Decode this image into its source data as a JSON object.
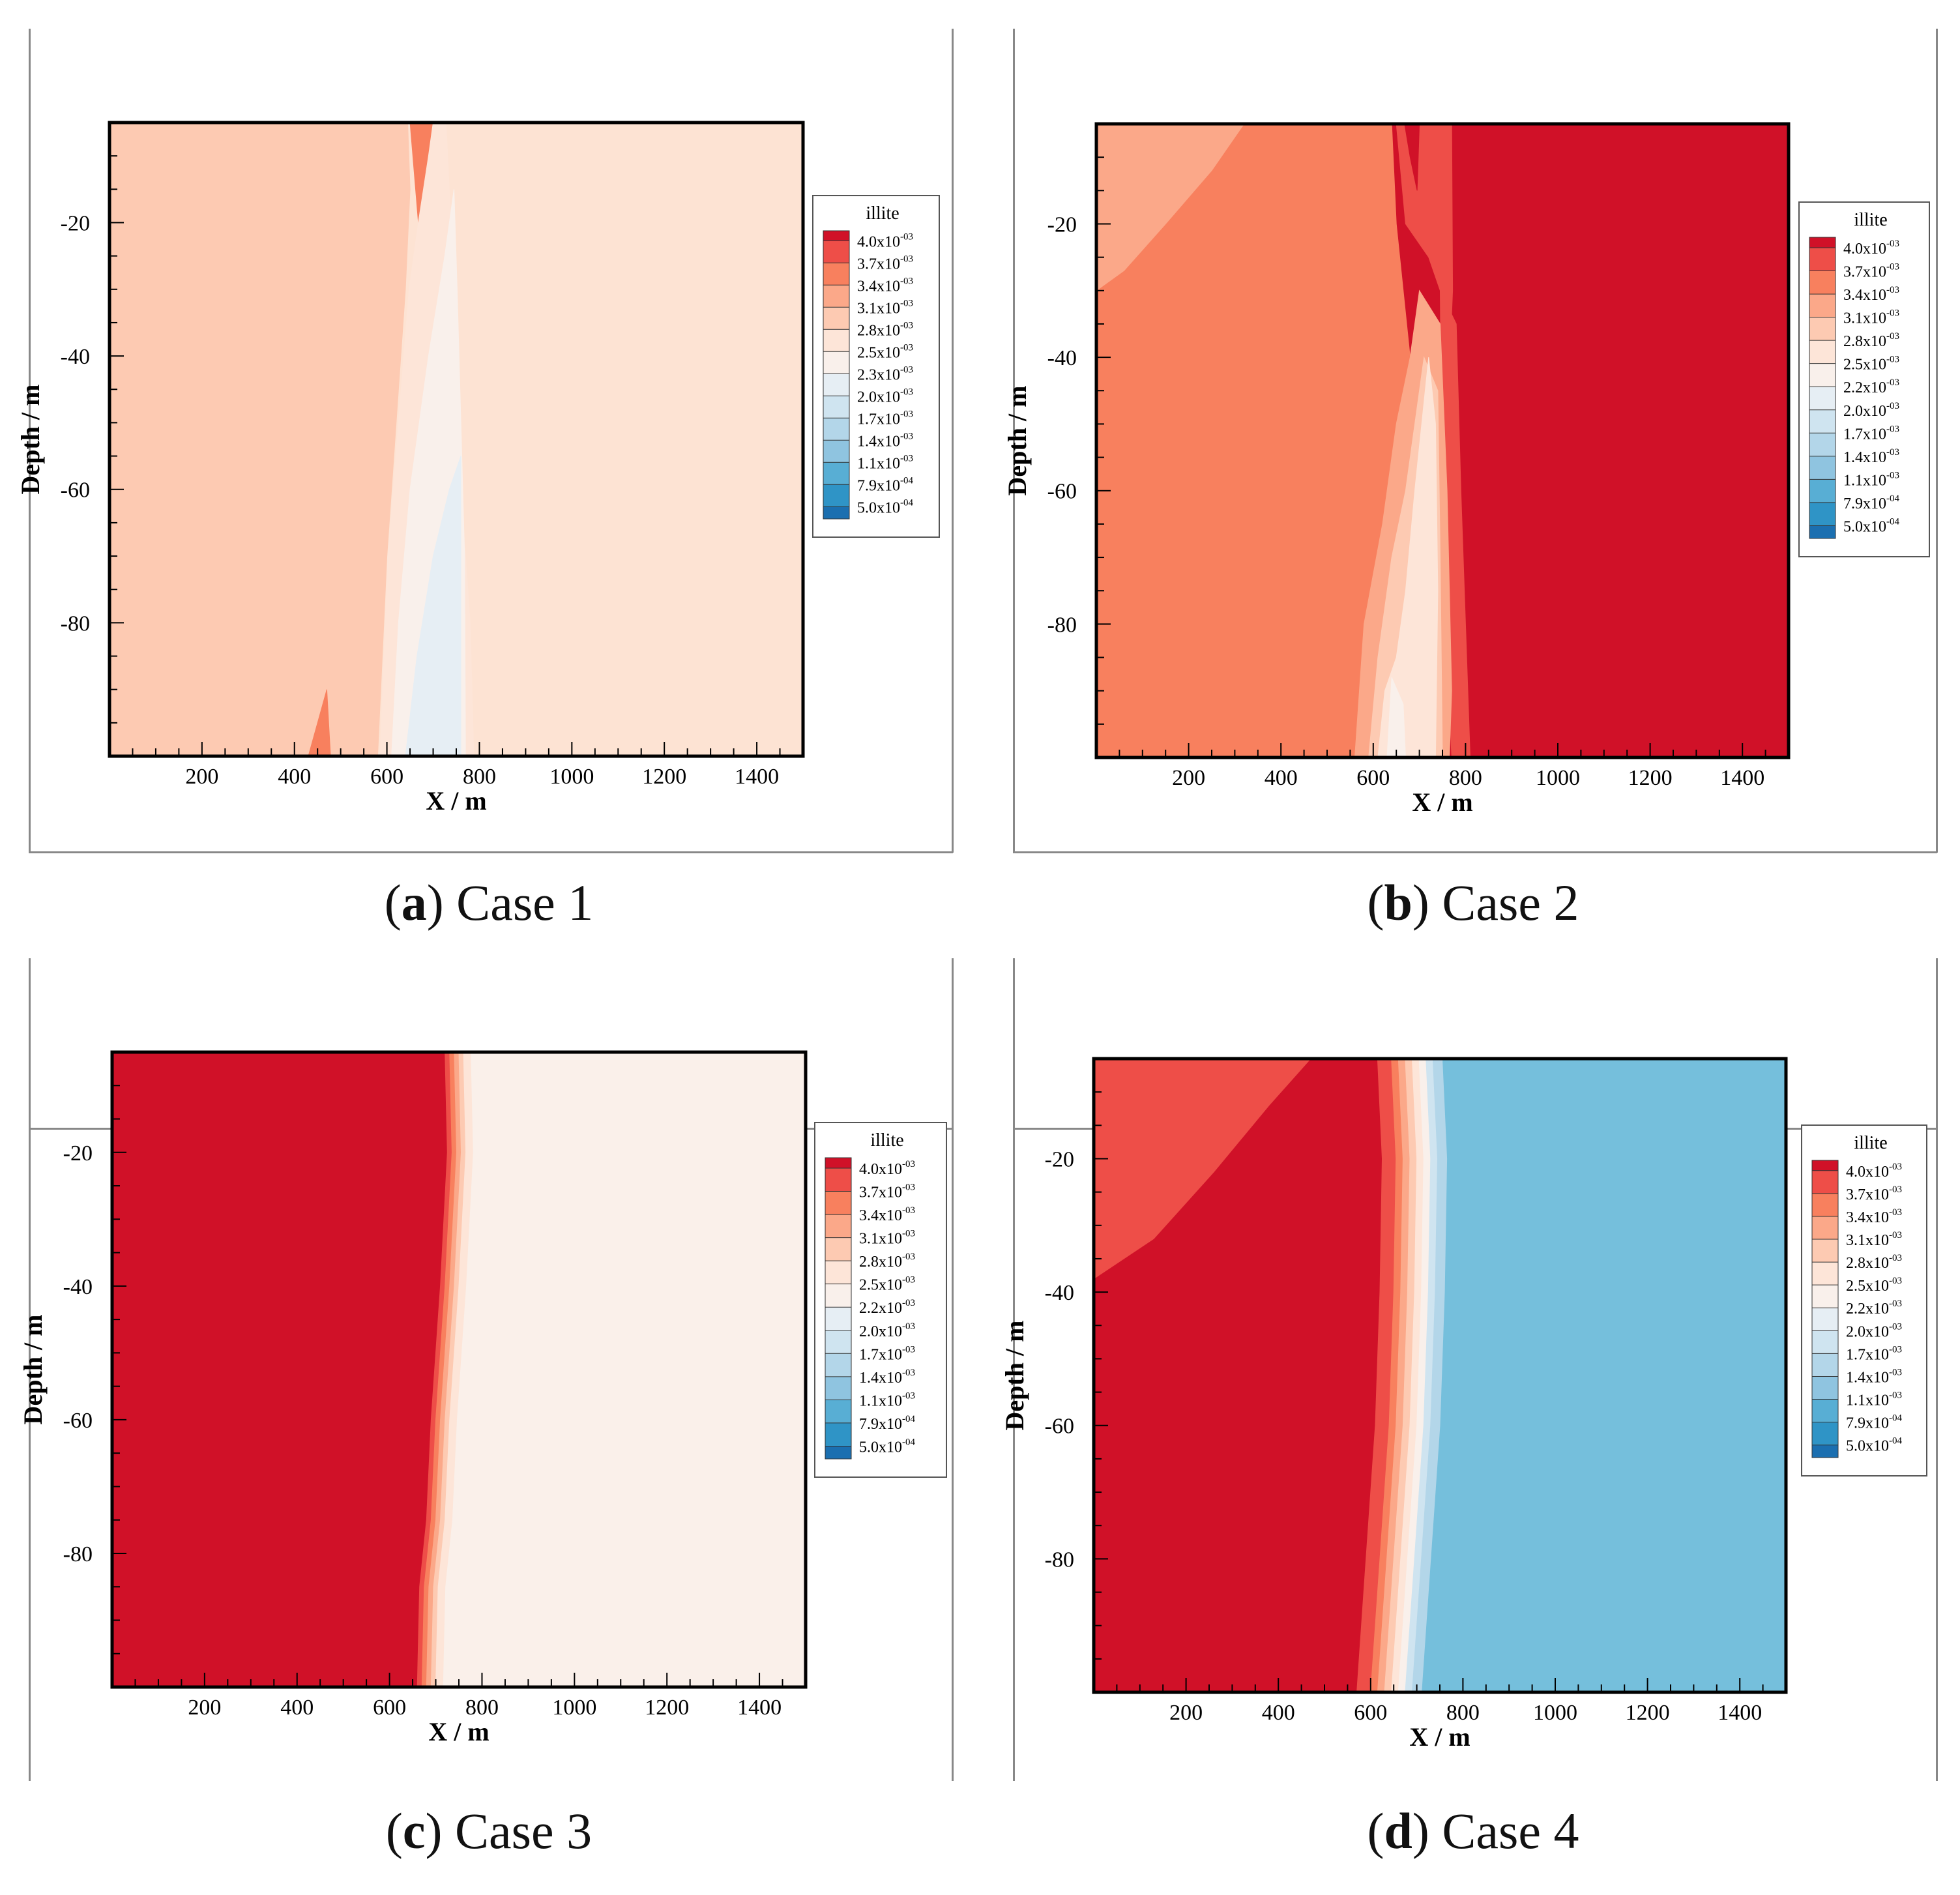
{
  "figure": {
    "panels": [
      {
        "letter": "a",
        "label": "Case 1"
      },
      {
        "letter": "b",
        "label": "Case 2"
      },
      {
        "letter": "c",
        "label": "Case 3"
      },
      {
        "letter": "d",
        "label": "Case 4"
      }
    ]
  },
  "colors": {
    "levels": [
      "#d01128",
      "#ee4e48",
      "#f8805e",
      "#fba889",
      "#fdcab2",
      "#fde5d8",
      "#f9f0eb",
      "#e6eef4",
      "#cfe4f0",
      "#b3d6e9",
      "#8fc4e0",
      "#58aed4",
      "#2f94c6",
      "#1b6fb0"
    ],
    "case4_blue": "#75bfdc",
    "case1_base": "#fde3d3",
    "case3_white": "#faf0ea"
  },
  "chart_data": [
    {
      "type": "contour",
      "panel": "a",
      "caption": "(a) Case 1",
      "variable": "illite",
      "xlabel": "X / m",
      "ylabel": "Depth / m",
      "xlim": [
        0,
        1500
      ],
      "ylim": [
        -100,
        -5
      ],
      "xticks": [
        200,
        400,
        600,
        800,
        1000,
        1200,
        1400
      ],
      "yticks": [
        -20,
        -40,
        -60,
        -80
      ],
      "legend_title": "illite",
      "legend_levels": [
        "4.0x10-03",
        "3.7x10-03",
        "3.4x10-03",
        "3.1x10-03",
        "2.8x10-03",
        "2.5x10-03",
        "2.3x10-03",
        "2.0x10-03",
        "1.7x10-03",
        "1.4x10-03",
        "1.1x10-03",
        "7.9x10-04",
        "5.0x10-04"
      ]
    },
    {
      "type": "contour",
      "panel": "b",
      "caption": "(b) Case 2",
      "variable": "illite",
      "xlabel": "X / m",
      "ylabel": "Depth / m",
      "xlim": [
        0,
        1500
      ],
      "ylim": [
        -100,
        -5
      ],
      "xticks": [
        200,
        400,
        600,
        800,
        1000,
        1200,
        1400
      ],
      "yticks": [
        -20,
        -40,
        -60,
        -80
      ],
      "legend_title": "illite",
      "legend_levels": [
        "4.0x10-03",
        "3.7x10-03",
        "3.4x10-03",
        "3.1x10-03",
        "2.8x10-03",
        "2.5x10-03",
        "2.2x10-03",
        "2.0x10-03",
        "1.7x10-03",
        "1.4x10-03",
        "1.1x10-03",
        "7.9x10-04",
        "5.0x10-04"
      ]
    },
    {
      "type": "contour",
      "panel": "c",
      "caption": "(c) Case 3",
      "variable": "illite",
      "xlabel": "X / m",
      "ylabel": "Depth / m",
      "xlim": [
        0,
        1500
      ],
      "ylim": [
        -100,
        -5
      ],
      "xticks": [
        200,
        400,
        600,
        800,
        1000,
        1200,
        1400
      ],
      "yticks": [
        -20,
        -40,
        -60,
        -80
      ],
      "legend_title": "illite",
      "legend_levels": [
        "4.0x10-03",
        "3.7x10-03",
        "3.4x10-03",
        "3.1x10-03",
        "2.8x10-03",
        "2.5x10-03",
        "2.2x10-03",
        "2.0x10-03",
        "1.7x10-03",
        "1.4x10-03",
        "1.1x10-03",
        "7.9x10-04",
        "5.0x10-04"
      ]
    },
    {
      "type": "contour",
      "panel": "d",
      "caption": "(d) Case 4",
      "variable": "illite",
      "xlabel": "X / m",
      "ylabel": "Depth / m",
      "xlim": [
        0,
        1500
      ],
      "ylim": [
        -100,
        -5
      ],
      "xticks": [
        200,
        400,
        600,
        800,
        1000,
        1200,
        1400
      ],
      "yticks": [
        -20,
        -40,
        -60,
        -80
      ],
      "legend_title": "illite",
      "legend_levels": [
        "4.0x10-03",
        "3.7x10-03",
        "3.4x10-03",
        "3.1x10-03",
        "2.8x10-03",
        "2.5x10-03",
        "2.2x10-03",
        "2.0x10-03",
        "1.7x10-03",
        "1.4x10-03",
        "1.1x10-03",
        "7.9x10-04",
        "5.0x10-04"
      ]
    }
  ]
}
